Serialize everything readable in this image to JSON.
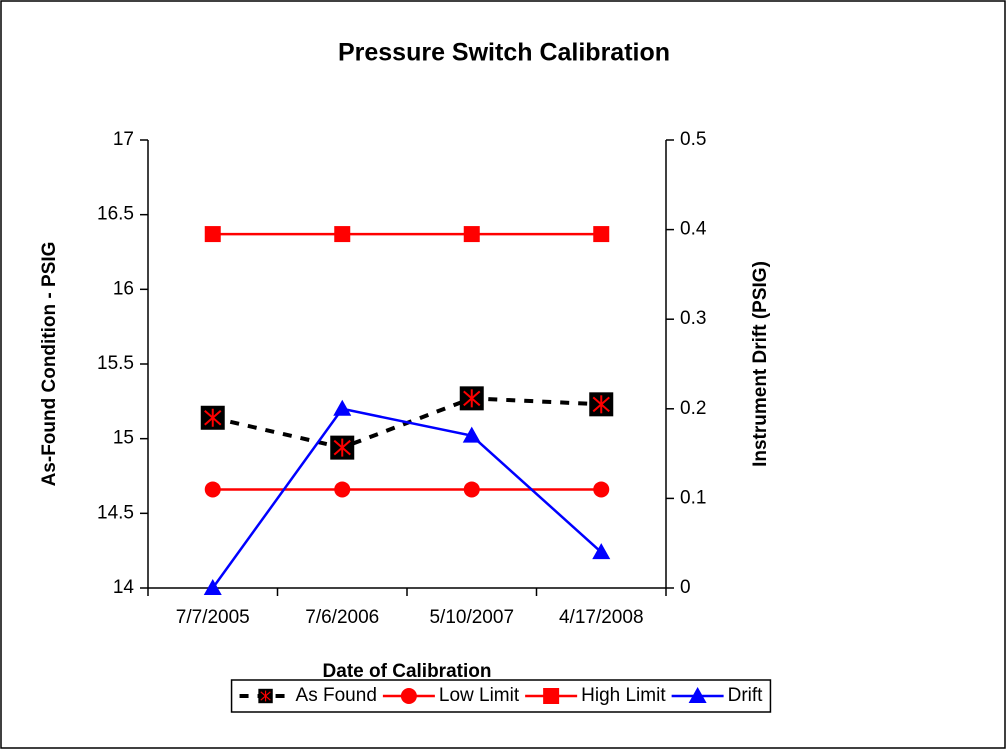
{
  "chart_data": {
    "type": "line",
    "title": "Pressure Switch Calibration",
    "x_label": "Date of Calibration",
    "y_label": "As-Found Condition - PSIG",
    "y2_label": "Instrument Drift (PSIG)",
    "categories": [
      "7/7/2005",
      "7/6/2006",
      "5/10/2007",
      "4/17/2008"
    ],
    "series": [
      {
        "name": "As Found",
        "color": "#000000",
        "marker": "star-square",
        "marker_color": "#ff0000",
        "dashed": true,
        "values": [
          15.14,
          14.94,
          15.27,
          15.23
        ]
      },
      {
        "name": "Low Limit",
        "color": "#ff0000",
        "marker": "circle",
        "values": [
          14.66,
          14.66,
          14.66,
          14.66
        ]
      },
      {
        "name": "High Limit",
        "color": "#ff0000",
        "marker": "square",
        "values": [
          16.37,
          16.37,
          16.37,
          16.37
        ]
      },
      {
        "name": "Drift",
        "color": "#0000ff",
        "marker": "triangle",
        "axis": "y2",
        "values": [
          0,
          0.2,
          0.17,
          0.04
        ]
      }
    ],
    "ylim": [
      14,
      17
    ],
    "yticks": [
      14,
      14.5,
      15,
      15.5,
      16,
      16.5,
      17
    ],
    "y2lim": [
      0,
      0.5
    ],
    "y2ticks": [
      0,
      0.1,
      0.2,
      0.3,
      0.4,
      0.5
    ],
    "legend": "bottom"
  }
}
